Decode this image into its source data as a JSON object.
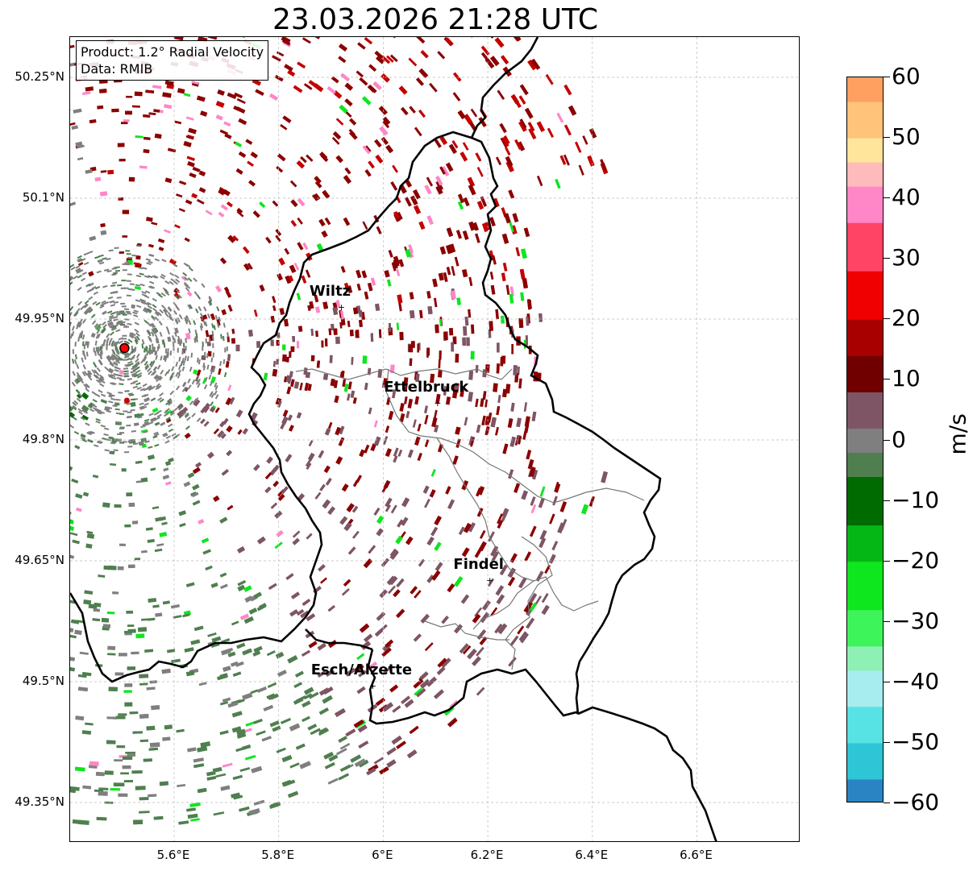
{
  "title": "23.03.2026 21:28 UTC",
  "info": {
    "product": "Product: 1.2° Radial Velocity",
    "data": "Data: RMIB"
  },
  "lat_labels": [
    "50.25°N",
    "50.1°N",
    "49.95°N",
    "49.8°N",
    "49.65°N",
    "49.5°N",
    "49.35°N"
  ],
  "lon_labels": [
    "5.6°E",
    "5.8°E",
    "6°E",
    "6.2°E",
    "6.4°E",
    "6.6°E"
  ],
  "cities": [
    {
      "name": "Wiltz",
      "lon": 5.92,
      "lat": 49.966
    },
    {
      "name": "Ettelbruck",
      "lon": 6.104,
      "lat": 49.847
    },
    {
      "name": "Findel",
      "lon": 6.204,
      "lat": 49.627
    },
    {
      "name": "Esch/Alzette",
      "lon": 5.98,
      "lat": 49.496
    }
  ],
  "radar_site": {
    "lon": 5.505,
    "lat": 49.914
  },
  "colorbar": {
    "unit": "m/s",
    "min": -60,
    "max": 60,
    "tick_labels": [
      "60",
      "50",
      "40",
      "30",
      "20",
      "10",
      "0",
      "−10",
      "−20",
      "−30",
      "−40",
      "−50",
      "−60"
    ],
    "tick_values": [
      60,
      50,
      40,
      30,
      20,
      10,
      0,
      -10,
      -20,
      -30,
      -40,
      -50,
      -60
    ],
    "segments": [
      {
        "from": -60,
        "to": -56,
        "color": "#2a84c4"
      },
      {
        "from": -56,
        "to": -50,
        "color": "#2ec6d6"
      },
      {
        "from": -50,
        "to": -44,
        "color": "#57e2e4"
      },
      {
        "from": -44,
        "to": -38,
        "color": "#a7ecee"
      },
      {
        "from": -38,
        "to": -34,
        "color": "#8ef0b4"
      },
      {
        "from": -34,
        "to": -28,
        "color": "#3df55a"
      },
      {
        "from": -28,
        "to": -20,
        "color": "#0ee61e"
      },
      {
        "from": -20,
        "to": -14,
        "color": "#05b714"
      },
      {
        "from": -14,
        "to": -6,
        "color": "#006b00"
      },
      {
        "from": -6,
        "to": -2,
        "color": "#4f7f4f"
      },
      {
        "from": -2,
        "to": 2,
        "color": "#7f7f7f"
      },
      {
        "from": 2,
        "to": 8,
        "color": "#7e5564"
      },
      {
        "from": 8,
        "to": 14,
        "color": "#700000"
      },
      {
        "from": 14,
        "to": 20,
        "color": "#a80000"
      },
      {
        "from": 20,
        "to": 28,
        "color": "#f00000"
      },
      {
        "from": 28,
        "to": 36,
        "color": "#ff4466"
      },
      {
        "from": 36,
        "to": 42,
        "color": "#ff86c7"
      },
      {
        "from": 42,
        "to": 46,
        "color": "#ffbbbb"
      },
      {
        "from": 46,
        "to": 50,
        "color": "#ffe49c"
      },
      {
        "from": 50,
        "to": 56,
        "color": "#ffc37a"
      },
      {
        "from": 56,
        "to": 60,
        "color": "#ffa060"
      }
    ]
  },
  "colors": {
    "neg_dark": "#006b00",
    "neg_mid": "#4f7f4f",
    "near_zero": "#7f7f7f",
    "pos_mauve": "#7e5564",
    "pos_dark": "#8b0000",
    "pos_red": "#c40000",
    "pink": "#ff86c7",
    "green_bright": "#0ee61e",
    "radar_dot": "#ff0000"
  }
}
